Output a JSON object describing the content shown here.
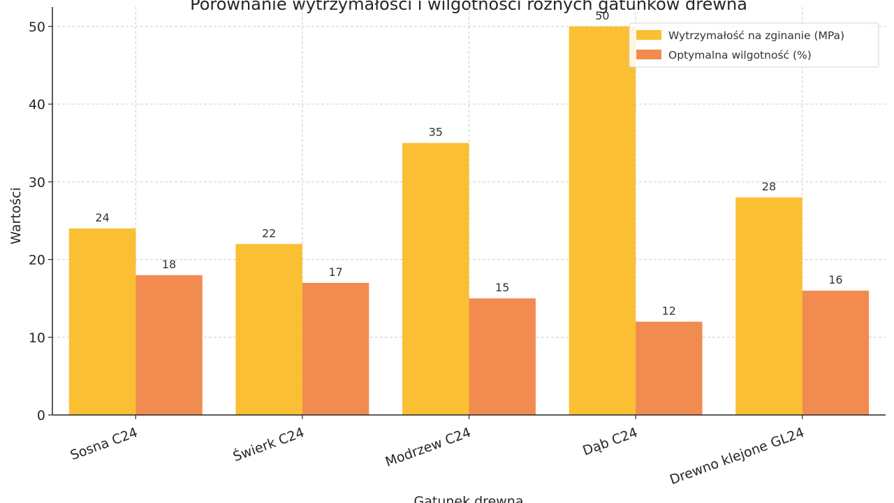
{
  "chart_data": {
    "type": "bar",
    "title": "Porównanie wytrzymałości i wilgotności różnych gatunków drewna",
    "xlabel": "Gatunek drewna",
    "ylabel": "Wartości",
    "categories": [
      "Sosna C24",
      "Świerk C24",
      "Modrzew C24",
      "Dąb C24",
      "Drewno klejone GL24"
    ],
    "series": [
      {
        "name": "Wytrzymałość na zginanie (MPa)",
        "values": [
          24,
          22,
          35,
          50,
          28
        ],
        "color": "#FBBF33"
      },
      {
        "name": "Optymalna wilgotność (%)",
        "values": [
          18,
          17,
          15,
          12,
          16
        ],
        "color": "#F28B4F"
      }
    ],
    "ylim": [
      0,
      52.5
    ],
    "yticks": [
      "0",
      "10",
      "20",
      "30",
      "40",
      "50"
    ],
    "grid": true,
    "legend_position": "top-right"
  }
}
